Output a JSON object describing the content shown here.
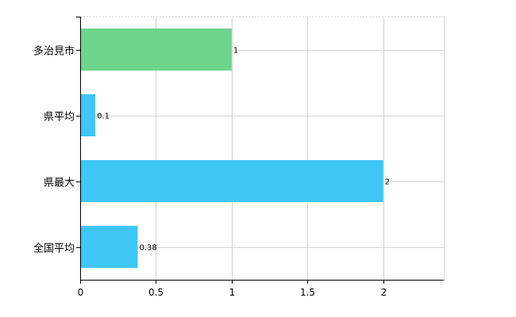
{
  "chart_data": {
    "type": "bar",
    "orientation": "horizontal",
    "categories": [
      "多治見市",
      "県平均",
      "県最大",
      "全国平均"
    ],
    "values": [
      1,
      0.1,
      2,
      0.38
    ],
    "value_labels": [
      "1",
      "0.1",
      "2",
      "0.38"
    ],
    "bar_colors": [
      "#6dd48c",
      "#3ec6f5",
      "#3ec6f5",
      "#3ec6f5"
    ],
    "xlim": [
      0,
      2.4
    ],
    "xticks": [
      0,
      0.5,
      1,
      1.5,
      2
    ],
    "xtick_labels": [
      "0",
      "0.5",
      "1",
      "1.5",
      "2"
    ],
    "title": "",
    "xlabel": "",
    "ylabel": "",
    "grid": true,
    "legend": "none"
  }
}
